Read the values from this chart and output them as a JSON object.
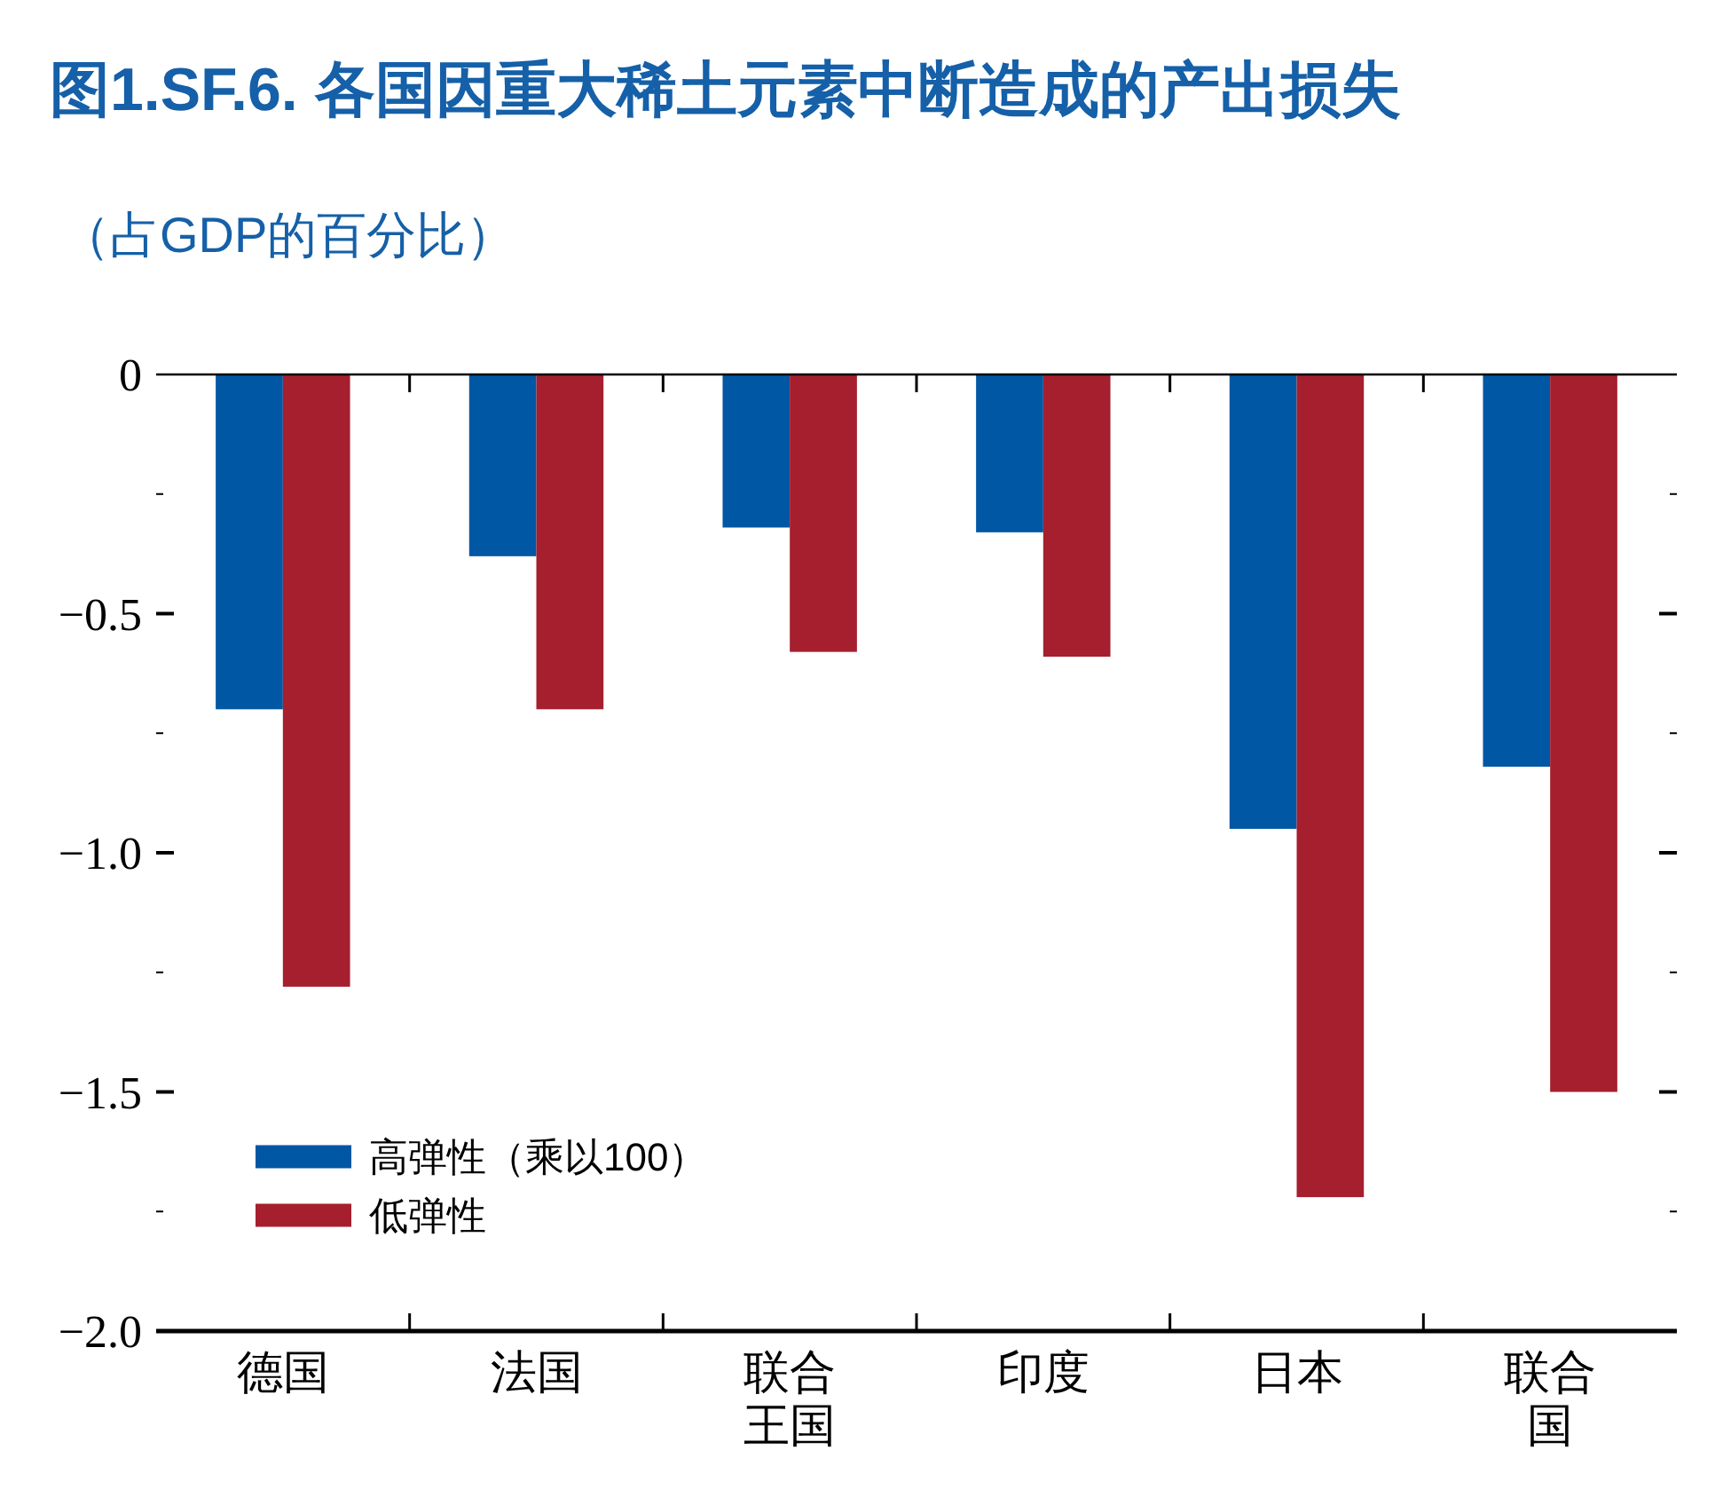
{
  "chart_data": {
    "type": "bar",
    "title": "图1.SF.6. 各国因重大稀土元素中断造成的产出损失",
    "subtitle": "（占GDP的百分比）",
    "categories": [
      "德国",
      "法国",
      "联合王国",
      "印度",
      "日本",
      "联合国"
    ],
    "series": [
      {
        "name": "高弹性（乘以100）",
        "color": "#0057a3",
        "values": [
          -0.7,
          -0.38,
          -0.32,
          -0.33,
          -0.95,
          -0.82
        ]
      },
      {
        "name": "低弹性",
        "color": "#a51f2e",
        "values": [
          -1.28,
          -0.7,
          -0.58,
          -0.59,
          -1.72,
          -1.5
        ]
      }
    ],
    "ylim": [
      -2.0,
      0
    ],
    "yticks": [
      {
        "value": 0,
        "label": "0"
      },
      {
        "value": -0.25,
        "label": null
      },
      {
        "value": -0.5,
        "label": "−0.5"
      },
      {
        "value": -0.75,
        "label": null
      },
      {
        "value": -1.0,
        "label": "−1.0"
      },
      {
        "value": -1.25,
        "label": null
      },
      {
        "value": -1.5,
        "label": "−1.5"
      },
      {
        "value": -1.75,
        "label": null
      },
      {
        "value": -2.0,
        "label": "−2.0"
      }
    ],
    "grid": false,
    "legend": "bottom left"
  }
}
